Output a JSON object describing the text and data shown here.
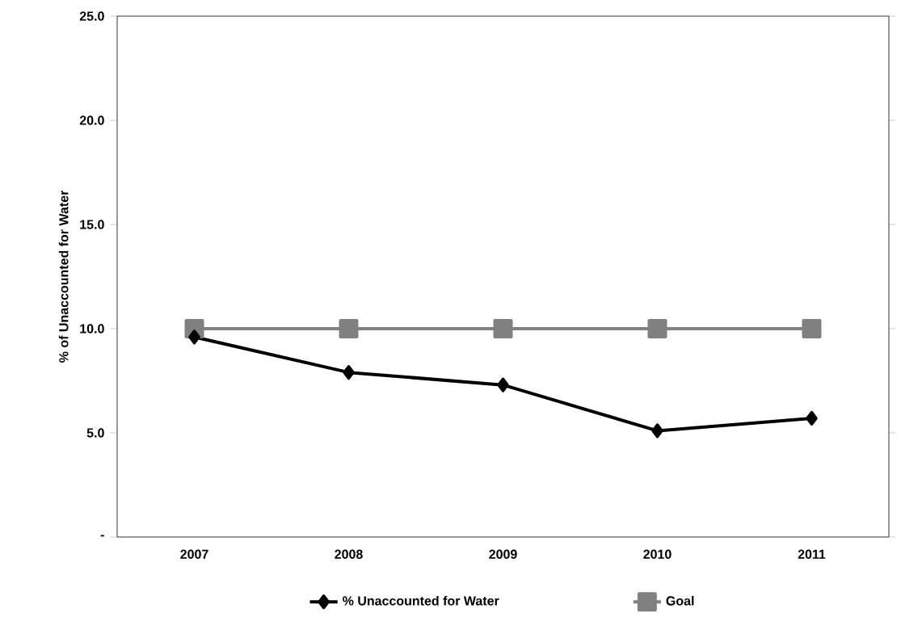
{
  "chart_data": {
    "type": "line",
    "ylabel": "% of Unaccounted for Water",
    "categories": [
      "2007",
      "2008",
      "2009",
      "2010",
      "2011"
    ],
    "series": [
      {
        "name": "% Unaccounted for Water",
        "color": "#000000",
        "marker": "diamond",
        "values": [
          9.6,
          7.9,
          7.3,
          5.1,
          5.7
        ]
      },
      {
        "name": "Goal",
        "color": "#808080",
        "marker": "square",
        "values": [
          10.0,
          10.0,
          10.0,
          10.0,
          10.0
        ]
      }
    ],
    "ylim": [
      0,
      25
    ],
    "yticks": [
      {
        "value": 0,
        "label": "-"
      },
      {
        "value": 5,
        "label": "5.0"
      },
      {
        "value": 10,
        "label": "10.0"
      },
      {
        "value": 15,
        "label": "15.0"
      },
      {
        "value": 20,
        "label": "20.0"
      },
      {
        "value": 25,
        "label": "25.0"
      }
    ],
    "grid": false,
    "legend": "bottom",
    "line_style": "solid"
  }
}
